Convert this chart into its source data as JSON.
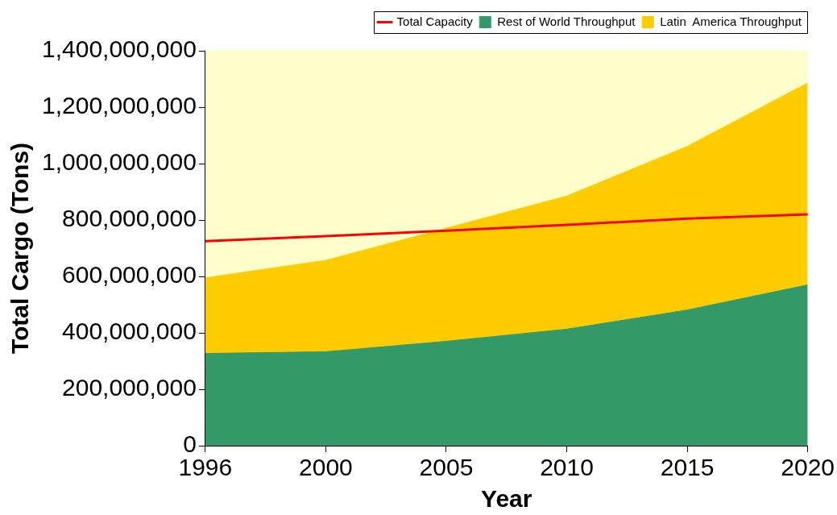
{
  "chart_data": {
    "type": "area",
    "xlabel": "Year",
    "ylabel": "Total Cargo (Tons)",
    "categories": [
      "1996",
      "2000",
      "2005",
      "2010",
      "2015",
      "2020"
    ],
    "stacked": true,
    "series": [
      {
        "name": "Rest of World Throughput",
        "color": "#339966",
        "values": [
          327000000,
          333000000,
          370000000,
          413000000,
          481000000,
          570000000
        ]
      },
      {
        "name": "Latin  America Throughput",
        "color": "#ffcc00",
        "values": [
          268000000,
          324000000,
          401000000,
          472000000,
          580000000,
          716000000
        ]
      },
      {
        "name": "Total Capacity",
        "type": "line",
        "color": "#ff0000",
        "values": [
          725000000,
          743000000,
          762000000,
          783000000,
          805000000,
          820000000
        ]
      }
    ],
    "ylim": [
      0,
      1400000000
    ],
    "yticks": [
      0,
      {
        "value": 200000000,
        "label": "200,000,000"
      },
      {
        "value": 400000000,
        "label": "400,000,000"
      },
      {
        "value": 600000000,
        "label": "600,000,000"
      },
      {
        "value": 800000000,
        "label": "800,000,000"
      },
      {
        "value": 1000000000,
        "label": "1,000,000,000"
      },
      {
        "value": 1200000000,
        "label": "1,200,000,000"
      },
      {
        "value": 1400000000,
        "label": "1,400,000,000"
      }
    ],
    "grid": false,
    "legend": "top",
    "marker": "none"
  }
}
